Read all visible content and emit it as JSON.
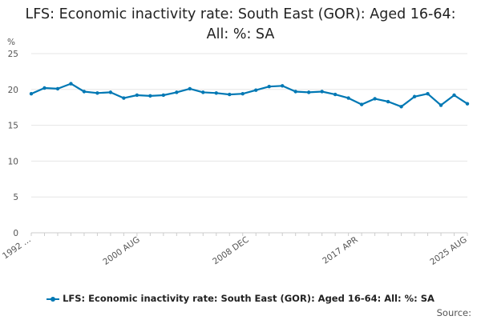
{
  "title": "LFS: Economic inactivity rate: South East (GOR): Aged 16-64: All: %: SA",
  "source_label": "Source:",
  "colors": {
    "series": "#0078b4",
    "grid": "#e6e6e6",
    "axis": "#cccccc"
  },
  "chart_data": {
    "type": "line",
    "title": "LFS: Economic inactivity rate: South East (GOR): Aged 16-64: All: %: SA",
    "ylabel": "%",
    "xlabel": "",
    "ylim": [
      0,
      25
    ],
    "yticks": [
      0,
      5,
      10,
      15,
      20,
      25
    ],
    "xtick_labels": [
      "1992 ...",
      "2000 AUG",
      "2008 DEC",
      "2017 APR",
      "2025 AUG"
    ],
    "grid": true,
    "legend_position": "bottom",
    "series": [
      {
        "name": "LFS: Economic inactivity rate: South East (GOR): Aged 16-64: All: %: SA",
        "x": [
          "1992",
          "1993",
          "1994",
          "1995",
          "1996",
          "1997",
          "1998",
          "1999",
          "2000",
          "2001",
          "2002",
          "2003",
          "2004",
          "2005",
          "2006",
          "2007",
          "2008",
          "2009",
          "2010",
          "2011",
          "2012",
          "2013",
          "2014",
          "2015",
          "2016",
          "2017",
          "2018",
          "2019",
          "2020",
          "2021",
          "2022",
          "2023",
          "2024",
          "2025"
        ],
        "values": [
          19.4,
          20.2,
          20.1,
          20.8,
          19.7,
          19.5,
          19.6,
          18.8,
          19.2,
          19.1,
          19.2,
          19.6,
          20.1,
          19.6,
          19.5,
          19.3,
          19.4,
          19.9,
          20.4,
          20.5,
          19.7,
          19.6,
          19.7,
          19.3,
          18.8,
          17.9,
          18.7,
          18.3,
          17.6,
          19.0,
          19.4,
          17.8,
          19.2,
          18.0
        ]
      }
    ]
  }
}
